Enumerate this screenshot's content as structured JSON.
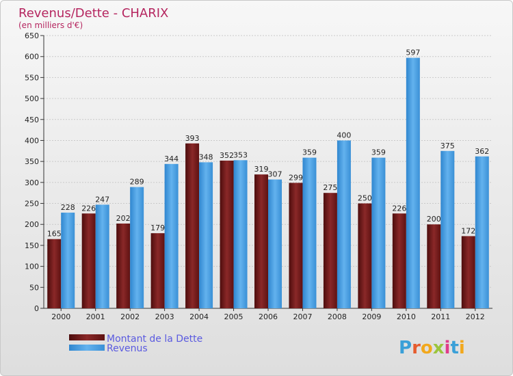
{
  "chart_data": {
    "type": "bar",
    "title": "Revenus/Dette - CHARIX",
    "subtitle": "(en milliers d'€)",
    "categories": [
      "2000",
      "2001",
      "2002",
      "2003",
      "2004",
      "2005",
      "2006",
      "2007",
      "2008",
      "2009",
      "2010",
      "2011",
      "2012"
    ],
    "series": [
      {
        "name": "Montant de la Dette",
        "color": "#7a1a1a",
        "values": [
          165,
          226,
          202,
          179,
          393,
          352,
          319,
          299,
          275,
          250,
          226,
          200,
          172
        ]
      },
      {
        "name": "Revenus",
        "color": "#4a9fe0",
        "values": [
          228,
          247,
          289,
          344,
          348,
          353,
          307,
          359,
          400,
          359,
          597,
          375,
          362
        ]
      }
    ],
    "ylim": [
      0,
      650
    ],
    "yticks": [
      0,
      50,
      100,
      150,
      200,
      250,
      300,
      350,
      400,
      450,
      500,
      550,
      600,
      650
    ],
    "grid": true,
    "legend_position": "bottom-left"
  },
  "logo": {
    "text": "Proxiti"
  }
}
